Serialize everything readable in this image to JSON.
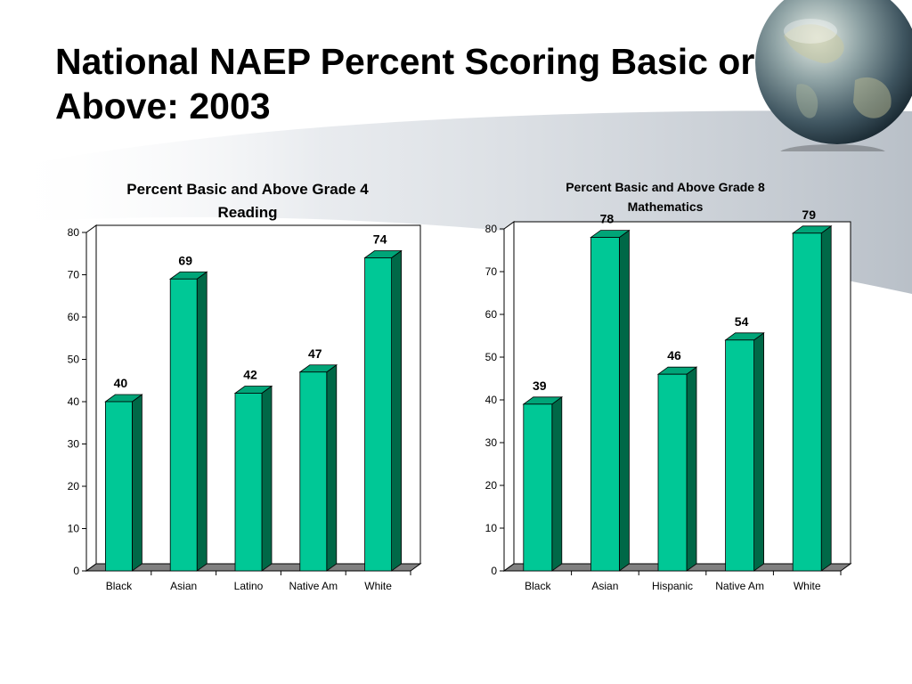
{
  "slide": {
    "title": "National NAEP Percent Scoring Basic or Above: 2003"
  },
  "colors": {
    "bar_front": "#00C896",
    "bar_side": "#006847",
    "bar_top": "#00A578",
    "floor": "#808080"
  },
  "chart_data": [
    {
      "type": "bar",
      "title": "Percent Basic and Above Grade 4 Reading",
      "title_lines": [
        "Percent Basic and Above Grade 4",
        "Reading"
      ],
      "categories": [
        "Black",
        "Asian",
        "Latino",
        "Native Am",
        "White"
      ],
      "values": [
        40,
        69,
        42,
        47,
        74
      ],
      "ylim": [
        0,
        80
      ],
      "yticks": [
        0,
        10,
        20,
        30,
        40,
        50,
        60,
        70,
        80
      ],
      "xlabel": "",
      "ylabel": "",
      "grid": false,
      "style": "3d-column"
    },
    {
      "type": "bar",
      "title": "Percent Basic and Above Grade 8 Mathematics",
      "title_lines": [
        "Percent Basic and Above Grade 8",
        "Mathematics"
      ],
      "categories": [
        "Black",
        "Asian",
        "Hispanic",
        "Native Am",
        "White"
      ],
      "values": [
        39,
        78,
        46,
        54,
        79
      ],
      "ylim": [
        0,
        80
      ],
      "yticks": [
        0,
        10,
        20,
        30,
        40,
        50,
        60,
        70,
        80
      ],
      "xlabel": "",
      "ylabel": "",
      "grid": false,
      "style": "3d-column"
    }
  ]
}
